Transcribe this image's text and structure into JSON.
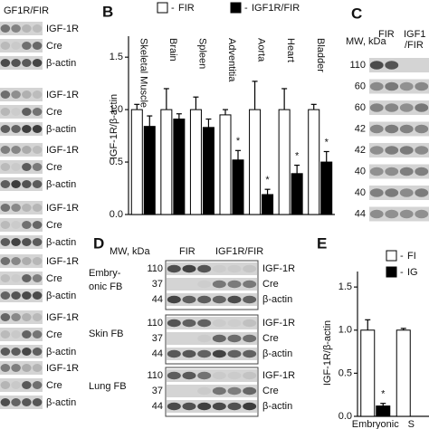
{
  "left_blots": {
    "header": "GF1R/FIR",
    "groups": [
      [
        "IGF-1R",
        "Cre",
        "β-actin"
      ],
      [
        "IGF-1R",
        "Cre",
        "β-actin"
      ],
      [
        "IGF-1R",
        "Cre",
        "β-actin"
      ],
      [
        "IGF-1R",
        "Cre",
        "β-actin"
      ],
      [
        "IGF-1R",
        "Cre",
        "β-actin"
      ],
      [
        "IGF-1R",
        "Cre",
        "β-actin"
      ],
      [
        "IGF-1R",
        "Cre",
        "β-actin"
      ]
    ]
  },
  "panel_c": {
    "label": "C",
    "mw_header": "MW, kDa",
    "lanes": [
      "FIR",
      "IGF1",
      "/FIR"
    ],
    "mw": [
      "110",
      "60",
      "60",
      "42",
      "42",
      "40",
      "40",
      "44"
    ]
  },
  "panel_d": {
    "label": "D",
    "mw_header": "MW, kDa",
    "lanes": [
      "FIR",
      "IGF1R/FIR"
    ],
    "rows": [
      {
        "name": [
          "Embry-",
          "onic FB"
        ],
        "mw": [
          "110",
          "37",
          "44"
        ],
        "proteins": [
          "IGF-1R",
          "Cre",
          "β-actin"
        ]
      },
      {
        "name": [
          "Skin FB"
        ],
        "mw": [
          "110",
          "37",
          "44"
        ],
        "proteins": [
          "IGF-1R",
          "Cre",
          "β-actin"
        ]
      },
      {
        "name": [
          "Lung FB"
        ],
        "mw": [
          "110",
          "37",
          "44"
        ],
        "proteins": [
          "IGF-1R",
          "Cre",
          "β-actin"
        ]
      }
    ]
  },
  "chart_data": [
    {
      "type": "bar",
      "panel_label": "B",
      "y_label": "IGF-1R/β-actin",
      "categories": [
        "Skeletal Muscle",
        "Brain",
        "Spleen",
        "Adventitia",
        "Aorta",
        "Heart",
        "Bladder"
      ],
      "series": [
        {
          "name": "FIR",
          "color": "#ffffff",
          "values": [
            1.0,
            1.0,
            1.0,
            0.95,
            1.0,
            1.0,
            1.0
          ],
          "errors": [
            0.05,
            0.2,
            0.12,
            0.05,
            0.27,
            0.2,
            0.05
          ],
          "annotations": [
            null,
            null,
            null,
            null,
            null,
            null,
            null
          ]
        },
        {
          "name": "IGF1R/FIR",
          "color": "#000000",
          "values": [
            0.84,
            0.91,
            0.83,
            0.52,
            0.19,
            0.39,
            0.5
          ],
          "errors": [
            0.1,
            0.05,
            0.08,
            0.09,
            0.05,
            0.08,
            0.1
          ],
          "annotations": [
            null,
            null,
            null,
            "*",
            "*",
            "*",
            "*"
          ]
        }
      ],
      "ylim": [
        0,
        1.7
      ],
      "yticks": [
        {
          "value": 0,
          "label": "0.0"
        },
        0.5,
        {
          "value": 1,
          "label": "1.0"
        },
        1.5
      ]
    },
    {
      "type": "bar",
      "panel_label": "E",
      "y_label": "IGF-1R/β-actin",
      "categories": [
        "Embryonic",
        "S"
      ],
      "series": [
        {
          "name": "FI",
          "color": "#ffffff",
          "values": [
            1.0,
            1.0
          ],
          "errors": [
            0.12,
            0.02
          ],
          "annotations": [
            null,
            null
          ]
        },
        {
          "name": "IG",
          "color": "#000000",
          "values": [
            0.12,
            null
          ],
          "errors": [
            0.03,
            null
          ],
          "annotations": [
            "*",
            null
          ]
        }
      ],
      "ylim": [
        0,
        1.68
      ],
      "yticks": [
        {
          "value": 0,
          "label": "0.0"
        },
        0.5,
        {
          "value": 1,
          "label": "1.0"
        },
        1.5
      ]
    }
  ]
}
